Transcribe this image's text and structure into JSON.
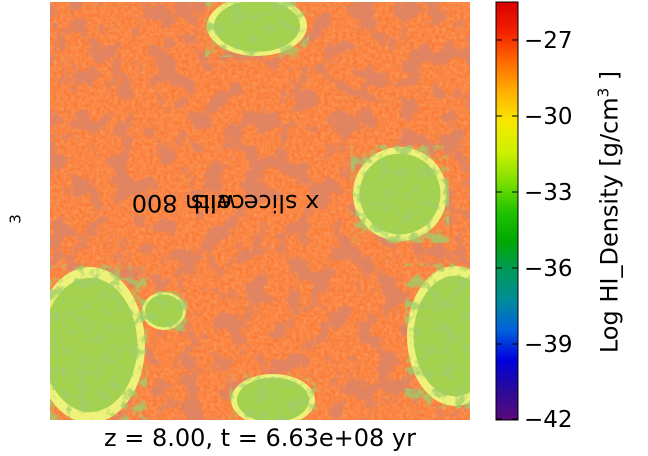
{
  "plot": {
    "ylabel_pre": "x slice with 800",
    "ylabel_exp": "3",
    "ylabel_post": "  cells",
    "xlabel": "z = 8.00, t = 6.63e+08 yr",
    "colorbar_label_pre": "Log HI_Density [g/cm",
    "colorbar_label_exp": "3",
    "colorbar_label_post": " ]"
  },
  "colorbar": {
    "colormap": "nipy_spectral",
    "range": [
      -42,
      -25.5
    ],
    "ticks": [
      "−42",
      "−39",
      "−36",
      "−33",
      "−30",
      "−27"
    ],
    "tick_values": [
      -42,
      -39,
      -36,
      -33,
      -30,
      -27
    ],
    "colors": [
      "#5b0a7a",
      "#2a0a9a",
      "#0000dd",
      "#0060dd",
      "#008c9a",
      "#009a5a",
      "#00a800",
      "#22c400",
      "#7ee000",
      "#d0f000",
      "#f7e800",
      "#ffb000",
      "#ff6a00",
      "#f42000",
      "#d80000"
    ]
  },
  "slice_image": {
    "background_color": "#fa7a36",
    "filament_color": "#c03a1e",
    "ionized_fill_color": "#a4d24e",
    "ionized_edge_color": "#eef27a"
  }
}
